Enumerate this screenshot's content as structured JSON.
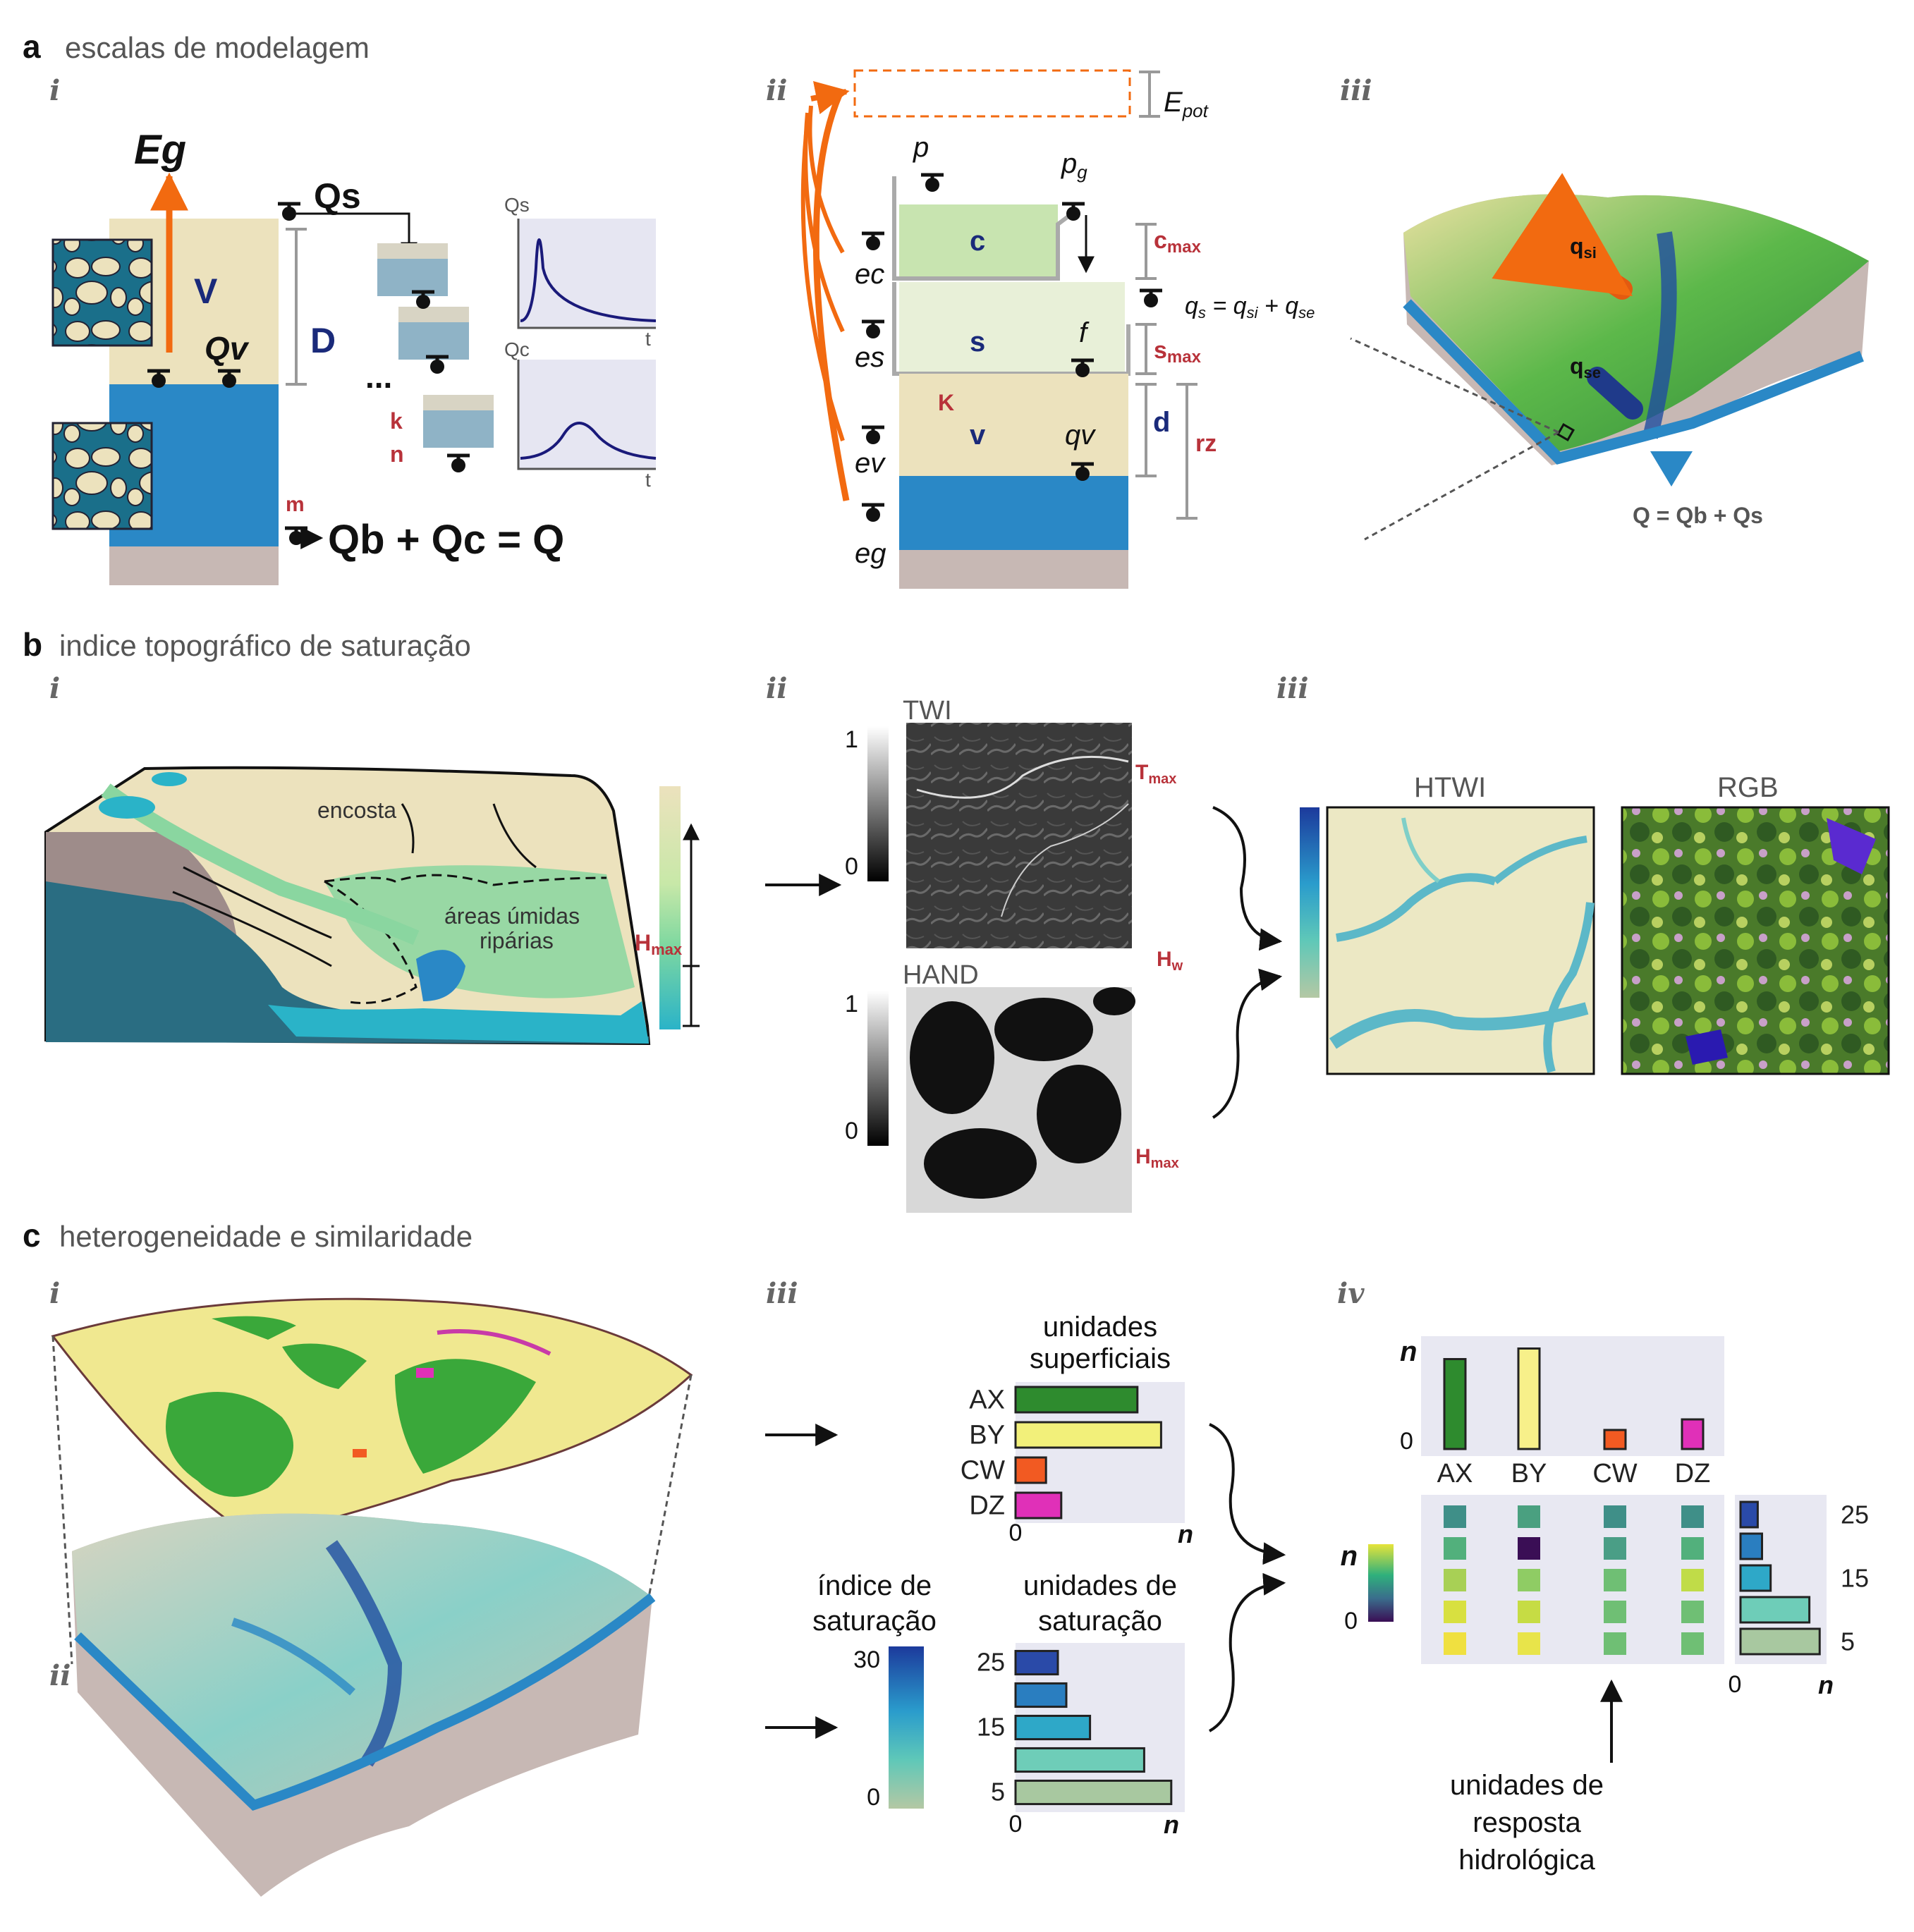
{
  "sections": {
    "a": {
      "letter": "a",
      "title": "escalas de modelagem"
    },
    "b": {
      "letter": "b",
      "title": "indice topográfico de saturação"
    },
    "c": {
      "letter": "c",
      "title": "heterogeneidade e similaridade"
    }
  },
  "roman": {
    "i": "i",
    "ii": "ii",
    "iii": "iii",
    "iv": "iv"
  },
  "a_i": {
    "Eg": "Eg",
    "Qs": "Qs",
    "V": "V",
    "Qv": "Qv",
    "D": "D",
    "k": "k",
    "n": "n",
    "m": "m",
    "dots": "...",
    "equation": "Qb + Qc = Q",
    "plot1_label": "Qs",
    "plot2_label": "Qc",
    "t": "t"
  },
  "a_ii": {
    "Epot": "E",
    "Epot_sub": "pot",
    "p": "p",
    "pg": "p",
    "pg_sub": "g",
    "c": "c",
    "s": "s",
    "v": "v",
    "K": "K",
    "f": "f",
    "qv": "qv",
    "ec": "ec",
    "es": "es",
    "ev": "ev",
    "eg": "eg",
    "cmax": "c",
    "cmax_sub": "max",
    "smax": "s",
    "smax_sub": "max",
    "d": "d",
    "rz": "rz",
    "qs_eq": "q",
    "qs_eq_parts": [
      "s",
      " = q",
      "si",
      " + q",
      "se"
    ]
  },
  "a_iii": {
    "qsi": "q",
    "qsi_sub": "si",
    "qse": "q",
    "qse_sub": "se",
    "Q_eq": "Q = Qb + Qs"
  },
  "b_i": {
    "encosta": "encosta",
    "wet1": "áreas úmidas",
    "wet2": "ripárias",
    "Hmax": "H",
    "Hmax_sub": "max"
  },
  "b_ii": {
    "twi": "TWI",
    "hand": "HAND",
    "one": "1",
    "zero": "0",
    "Tmax": "T",
    "Tmax_sub": "max",
    "Hw": "H",
    "Hw_sub": "w",
    "Hmax": "H",
    "Hmax_sub": "max"
  },
  "b_iii": {
    "htwi": "HTWI",
    "rgb": "RGB"
  },
  "c_iii": {
    "sup_title1": "unidades",
    "sup_title2": "superficiais",
    "sat_title1": "unidades de",
    "sat_title2": "saturação",
    "idx_title1": "índice de",
    "idx_title2": "saturação",
    "idx_max": "30",
    "idx_min": "0",
    "zero": "0",
    "n": "n"
  },
  "c_iv": {
    "n": "n",
    "zero": "0",
    "hru1": "unidades de",
    "hru2": "resposta",
    "hru3": "hidrológica"
  },
  "chart_data": [
    {
      "type": "bar",
      "title": "unidades superficiais",
      "orientation": "horizontal",
      "categories": [
        "AX",
        "BY",
        "CW",
        "DZ"
      ],
      "values": [
        0.72,
        0.86,
        0.18,
        0.27
      ],
      "colors": [
        "#2e8b2e",
        "#f2f07a",
        "#f25a22",
        "#e030b8"
      ],
      "xlabel": "n",
      "xlim": [
        0,
        1
      ],
      "x_tick_labels": [
        "0"
      ]
    },
    {
      "type": "bar",
      "title": "unidades de saturação",
      "orientation": "horizontal",
      "categories": [
        "25",
        "",
        "15",
        "",
        "5"
      ],
      "values": [
        0.25,
        0.3,
        0.44,
        0.76,
        0.92
      ],
      "colors": [
        "#2a4aa8",
        "#2a7ec0",
        "#2ea8c8",
        "#6ecdb8",
        "#a8c8a0"
      ],
      "xlabel": "n",
      "xlim": [
        0,
        1
      ],
      "x_tick_labels": [
        "0"
      ]
    },
    {
      "type": "bar",
      "orientation": "vertical",
      "categories": [
        "AX",
        "BY",
        "CW",
        "DZ"
      ],
      "values": [
        0.85,
        0.95,
        0.18,
        0.28
      ],
      "colors": [
        "#2e8b2e",
        "#f7f08a",
        "#f25a22",
        "#e030b8"
      ],
      "ylabel": "n",
      "ylim": [
        0,
        1
      ],
      "y_tick_labels": [
        "0"
      ]
    },
    {
      "type": "heatmap",
      "columns": [
        "AX",
        "BY",
        "CW",
        "DZ"
      ],
      "rows": [
        "25",
        "",
        "15",
        "",
        "5"
      ],
      "cells": [
        [
          "#3f8f88",
          "#4aa080",
          "#3f8f88",
          "#3f8f88"
        ],
        [
          "#52b07c",
          "#3a0e55",
          "#4a9e86",
          "#52b07c"
        ],
        [
          "#a8d055",
          "#8fcc64",
          "#6fbf74",
          "#c0dc48"
        ],
        [
          "#d8e040",
          "#c6dc44",
          "#6fbf74",
          "#6fbf74"
        ],
        [
          "#f0e040",
          "#e8e44a",
          "#6fbf74",
          "#6fbf74"
        ]
      ],
      "ylabel": "n",
      "scale_min": "0"
    },
    {
      "type": "bar",
      "orientation": "horizontal",
      "categories": [
        "25",
        "",
        "15",
        "",
        "5"
      ],
      "values": [
        0.2,
        0.25,
        0.35,
        0.8,
        0.92
      ],
      "colors": [
        "#2a4aa8",
        "#2a7ec0",
        "#2ea8c8",
        "#6ecdb8",
        "#a8c8a0"
      ],
      "xlabel": "n",
      "xlim": [
        0,
        1
      ],
      "x_tick_labels": [
        "0"
      ]
    }
  ]
}
